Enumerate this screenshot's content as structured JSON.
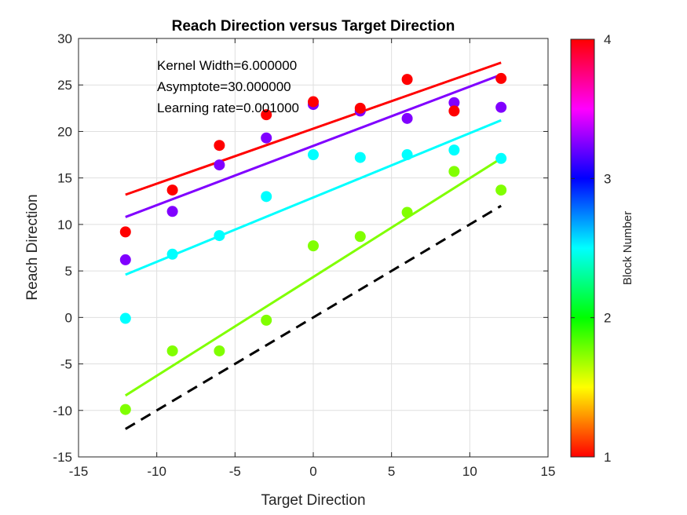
{
  "chart_data": {
    "type": "scatter",
    "title": "Reach Direction versus Target Direction",
    "xlabel": "Target Direction",
    "ylabel": "Reach Direction",
    "xlim": [
      -15,
      15
    ],
    "ylim": [
      -15,
      30
    ],
    "xticks": [
      "-15",
      "-10",
      "-5",
      "0",
      "5",
      "10",
      "15"
    ],
    "yticks": [
      "-15",
      "-10",
      "-5",
      "0",
      "5",
      "10",
      "15",
      "20",
      "25",
      "30"
    ],
    "grid": true,
    "annotations": [
      "Kernel Width=6.000000",
      "Asymptote=30.000000",
      "Learning rate=0.001000"
    ],
    "x": [
      -12,
      -9,
      -6,
      -3,
      0,
      3,
      6,
      9,
      12
    ],
    "series": [
      {
        "color": "#80ff00",
        "points": [
          -9.9,
          -3.6,
          -3.6,
          -0.3,
          7.7,
          8.7,
          11.3,
          15.7,
          13.7
        ],
        "fit": [
          -8.4,
          17.1
        ]
      },
      {
        "color": "#00ffff",
        "points": [
          -0.1,
          6.8,
          8.8,
          13.0,
          17.5,
          17.2,
          17.5,
          18.0,
          17.1
        ],
        "fit": [
          4.6,
          21.2
        ]
      },
      {
        "color": "#8000ff",
        "points": [
          6.2,
          11.4,
          16.4,
          19.3,
          22.9,
          22.2,
          21.4,
          23.1,
          22.6
        ],
        "fit": [
          10.8,
          26.1
        ]
      },
      {
        "color": "#ff0000",
        "points": [
          9.2,
          13.7,
          18.5,
          21.8,
          23.2,
          22.5,
          25.6,
          22.2,
          25.7
        ],
        "fit": [
          13.2,
          27.4
        ]
      }
    ],
    "reference_line": {
      "style": "dashed",
      "color": "#000000",
      "x": [
        -12,
        12
      ],
      "y": [
        -12,
        12
      ]
    },
    "colorbar": {
      "label": "Block Number",
      "range": [
        1,
        4
      ],
      "ticks": [
        "1",
        "2",
        "3",
        "4"
      ],
      "colormap": "hsv"
    }
  }
}
